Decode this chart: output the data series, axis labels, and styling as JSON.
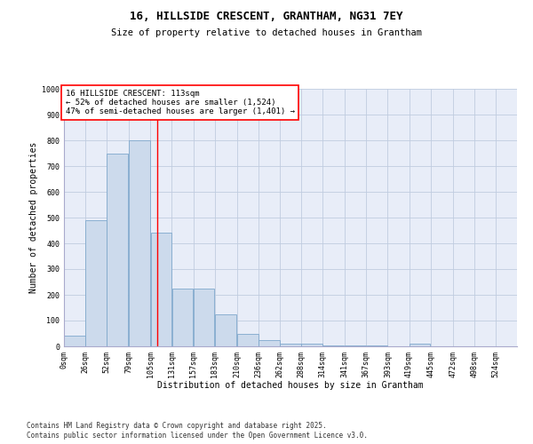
{
  "title_line1": "16, HILLSIDE CRESCENT, GRANTHAM, NG31 7EY",
  "title_line2": "Size of property relative to detached houses in Grantham",
  "xlabel": "Distribution of detached houses by size in Grantham",
  "ylabel": "Number of detached properties",
  "bin_labels": [
    "0sqm",
    "26sqm",
    "52sqm",
    "79sqm",
    "105sqm",
    "131sqm",
    "157sqm",
    "183sqm",
    "210sqm",
    "236sqm",
    "262sqm",
    "288sqm",
    "314sqm",
    "341sqm",
    "367sqm",
    "393sqm",
    "419sqm",
    "445sqm",
    "472sqm",
    "498sqm",
    "524sqm"
  ],
  "bin_edges": [
    0,
    26,
    52,
    79,
    105,
    131,
    157,
    183,
    210,
    236,
    262,
    288,
    314,
    341,
    367,
    393,
    419,
    445,
    472,
    498,
    524
  ],
  "bar_heights": [
    40,
    490,
    750,
    800,
    440,
    225,
    225,
    125,
    50,
    25,
    10,
    10,
    5,
    5,
    2,
    0,
    10,
    0,
    0,
    0,
    0
  ],
  "bar_color": "#ccdaec",
  "bar_edge_color": "#7fa8cc",
  "vline_x": 113,
  "vline_color": "red",
  "annotation_text": "16 HILLSIDE CRESCENT: 113sqm\n← 52% of detached houses are smaller (1,524)\n47% of semi-detached houses are larger (1,401) →",
  "annotation_box_color": "white",
  "annotation_box_edge": "red",
  "ylim": [
    0,
    1000
  ],
  "yticks": [
    0,
    100,
    200,
    300,
    400,
    500,
    600,
    700,
    800,
    900,
    1000
  ],
  "grid_color": "#c0cce0",
  "bg_color": "#e8edf8",
  "footer_line1": "Contains HM Land Registry data © Crown copyright and database right 2025.",
  "footer_line2": "Contains public sector information licensed under the Open Government Licence v3.0.",
  "title_fontsize": 9,
  "subtitle_fontsize": 7.5,
  "axis_label_fontsize": 7,
  "tick_fontsize": 6,
  "annotation_fontsize": 6.5,
  "footer_fontsize": 5.5,
  "ylabel_fontsize": 7
}
